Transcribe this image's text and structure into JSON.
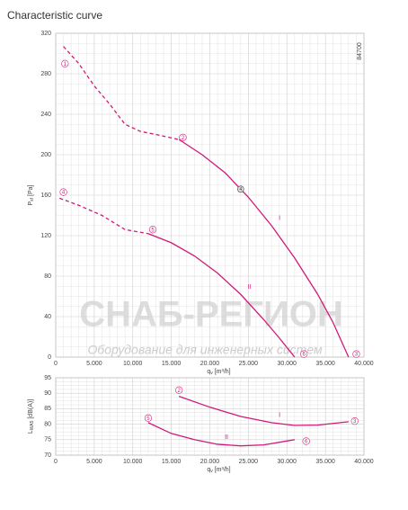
{
  "title": "Characteristic curve",
  "watermark": [
    "СНАБ-РЕГИОН",
    "Оборудование для инженерных систем"
  ],
  "chart_data": [
    {
      "type": "line",
      "code": "84700",
      "x_label": [
        "q",
        "v",
        " [m³/h]"
      ],
      "y_label": [
        "P",
        "sf",
        " [Pa]"
      ],
      "xlim": [
        0,
        40000
      ],
      "ylim": [
        0,
        320
      ],
      "grid": true,
      "xticks": [
        0,
        {
          "value": 5000,
          "label": "5.000"
        },
        {
          "value": 10000,
          "label": "10.000"
        },
        {
          "value": 15000,
          "label": "15.000"
        },
        {
          "value": 20000,
          "label": "20.000"
        },
        {
          "value": 25000,
          "label": "25.000"
        },
        {
          "value": 30000,
          "label": "30.000"
        },
        {
          "value": 35000,
          "label": "35.000"
        },
        {
          "value": 40000,
          "label": "40.000"
        }
      ],
      "yticks": [
        0,
        40,
        80,
        120,
        160,
        200,
        240,
        280,
        320
      ],
      "series": [
        {
          "color": "#d0197a",
          "dashed": true,
          "x": [
            1000,
            3000,
            5000,
            7000,
            9000,
            11000,
            13000,
            16000
          ],
          "values": [
            307,
            290,
            268,
            250,
            230,
            223,
            220,
            215
          ]
        },
        {
          "name": "I",
          "color": "#d0197a",
          "dashed": false,
          "x": [
            16000,
            19000,
            22000,
            25000,
            28000,
            31000,
            34000,
            36000,
            38000
          ],
          "values": [
            215,
            200,
            182,
            158,
            130,
            98,
            62,
            34,
            0
          ]
        },
        {
          "color": "#d0197a",
          "dashed": true,
          "x": [
            500,
            3000,
            6000,
            9000,
            12000
          ],
          "values": [
            157,
            150,
            140,
            126,
            122
          ]
        },
        {
          "name": "II",
          "color": "#d0197a",
          "dashed": false,
          "x": [
            12000,
            15000,
            18000,
            21000,
            24000,
            27000,
            29000,
            31000
          ],
          "values": [
            122,
            113,
            100,
            83,
            62,
            37,
            19,
            0
          ]
        }
      ],
      "operating_point": {
        "x": 24000,
        "y": 166,
        "label": "4"
      },
      "annotations": [
        {
          "text": "1",
          "x": 1200,
          "y": 290
        },
        {
          "text": "2",
          "x": 16500,
          "y": 217
        },
        {
          "text": "3",
          "x": 39000,
          "y": 3
        },
        {
          "text": "4",
          "x": 1000,
          "y": 163
        },
        {
          "text": "5",
          "x": 12600,
          "y": 126
        },
        {
          "text": "6",
          "x": 32200,
          "y": 3
        }
      ]
    },
    {
      "type": "line",
      "x_label": [
        "q",
        "v",
        " [m³/h]"
      ],
      "y_label": [
        "L",
        "WA5",
        " [dB(A)]"
      ],
      "xlim": [
        0,
        40000
      ],
      "ylim": [
        70,
        95
      ],
      "grid": true,
      "xticks": [
        0,
        {
          "value": 5000,
          "label": "5.000"
        },
        {
          "value": 10000,
          "label": "10.000"
        },
        {
          "value": 15000,
          "label": "15.000"
        },
        {
          "value": 20000,
          "label": "20.000"
        },
        {
          "value": 25000,
          "label": "25.000"
        },
        {
          "value": 30000,
          "label": "30.000"
        },
        {
          "value": 35000,
          "label": "35.000"
        },
        {
          "value": 40000,
          "label": "40.000"
        }
      ],
      "yticks": [
        70,
        75,
        80,
        85,
        90,
        95
      ],
      "series": [
        {
          "name": "I",
          "color": "#d0197a",
          "dashed": false,
          "x": [
            16000,
            20000,
            24000,
            28000,
            31000,
            34000,
            38000
          ],
          "values": [
            89,
            85.5,
            82.5,
            80.5,
            79.6,
            79.7,
            80.8
          ]
        },
        {
          "name": "II",
          "color": "#d0197a",
          "dashed": false,
          "x": [
            12000,
            15000,
            18000,
            21000,
            24000,
            27000,
            31000
          ],
          "values": [
            80.5,
            77,
            75,
            73.5,
            73,
            73.3,
            75
          ]
        }
      ],
      "annotations": [
        {
          "text": "2",
          "x": 16000,
          "y": 91
        },
        {
          "text": "3",
          "x": 38800,
          "y": 81
        },
        {
          "text": "5",
          "x": 12000,
          "y": 82
        },
        {
          "text": "6",
          "x": 32500,
          "y": 74.5
        }
      ]
    }
  ]
}
